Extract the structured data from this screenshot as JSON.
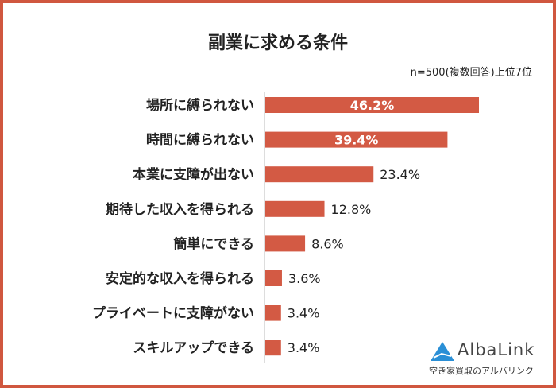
{
  "chart_data": {
    "type": "bar",
    "orientation": "horizontal",
    "title": "副業に求める条件",
    "subtitle": "n=500(複数回答)上位7位",
    "categories": [
      "場所に縛られない",
      "時間に縛られない",
      "本業に支障が出ない",
      "期待した収入を得られる",
      "簡単にできる",
      "安定的な収入を得られる",
      "プライベートに支障がない",
      "スキルアップできる"
    ],
    "values": [
      46.2,
      39.4,
      23.4,
      12.8,
      8.6,
      3.6,
      3.4,
      3.4
    ],
    "data_labels": [
      "46.2%",
      "39.4%",
      "23.4%",
      "12.8%",
      "8.6%",
      "3.6%",
      "3.4%",
      "3.4%"
    ],
    "unit": "%",
    "grid": false,
    "bar_color": "#d35a44",
    "frame_color": "#d0573f"
  },
  "logo": {
    "name": "AlbaLink",
    "tagline": "空き家買取のアルバリンク"
  }
}
